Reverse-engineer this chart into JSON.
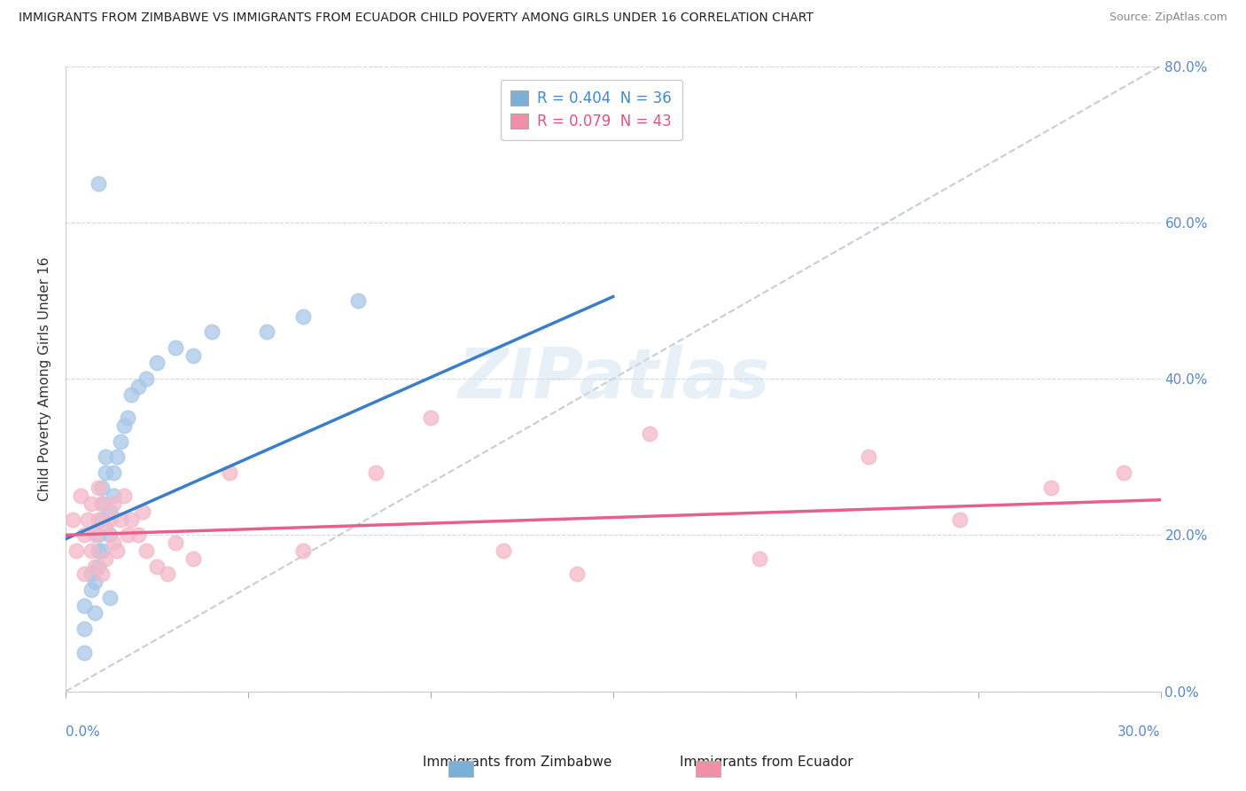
{
  "title": "IMMIGRANTS FROM ZIMBABWE VS IMMIGRANTS FROM ECUADOR CHILD POVERTY AMONG GIRLS UNDER 16 CORRELATION CHART",
  "source": "Source: ZipAtlas.com",
  "ylabel": "Child Poverty Among Girls Under 16",
  "legend1_label": "R = 0.404  N = 36",
  "legend2_label": "R = 0.079  N = 43",
  "legend_xlabel1": "Immigrants from Zimbabwe",
  "legend_xlabel2": "Immigrants from Ecuador",
  "watermark": "ZIPatlas",
  "blue_color": "#a8c8e8",
  "pink_color": "#f4b8c8",
  "blue_line": "#3a7ec8",
  "pink_line": "#e8608a",
  "blue_legend": "#7ab0d8",
  "pink_legend": "#f090a8",
  "xlim": [
    0.0,
    0.3
  ],
  "ylim": [
    0.0,
    0.8
  ],
  "zimbabwe_x": [
    0.005,
    0.005,
    0.005,
    0.007,
    0.007,
    0.008,
    0.008,
    0.009,
    0.009,
    0.009,
    0.009,
    0.01,
    0.01,
    0.01,
    0.011,
    0.011,
    0.012,
    0.012,
    0.013,
    0.013,
    0.014,
    0.015,
    0.016,
    0.017,
    0.018,
    0.02,
    0.022,
    0.025,
    0.03,
    0.035,
    0.04,
    0.055,
    0.065,
    0.08,
    0.01,
    0.012
  ],
  "zimbabwe_y": [
    0.05,
    0.08,
    0.11,
    0.13,
    0.15,
    0.1,
    0.14,
    0.16,
    0.18,
    0.2,
    0.65,
    0.22,
    0.24,
    0.26,
    0.28,
    0.3,
    0.2,
    0.23,
    0.25,
    0.28,
    0.3,
    0.32,
    0.34,
    0.35,
    0.38,
    0.39,
    0.4,
    0.42,
    0.44,
    0.43,
    0.46,
    0.46,
    0.48,
    0.5,
    0.18,
    0.12
  ],
  "ecuador_x": [
    0.002,
    0.003,
    0.004,
    0.005,
    0.005,
    0.006,
    0.007,
    0.007,
    0.008,
    0.008,
    0.009,
    0.009,
    0.01,
    0.01,
    0.011,
    0.011,
    0.012,
    0.013,
    0.013,
    0.014,
    0.015,
    0.016,
    0.017,
    0.018,
    0.02,
    0.021,
    0.022,
    0.025,
    0.028,
    0.03,
    0.035,
    0.045,
    0.065,
    0.085,
    0.1,
    0.12,
    0.14,
    0.16,
    0.19,
    0.22,
    0.245,
    0.27,
    0.29
  ],
  "ecuador_y": [
    0.22,
    0.18,
    0.25,
    0.15,
    0.2,
    0.22,
    0.18,
    0.24,
    0.2,
    0.16,
    0.22,
    0.26,
    0.15,
    0.24,
    0.17,
    0.21,
    0.22,
    0.24,
    0.19,
    0.18,
    0.22,
    0.25,
    0.2,
    0.22,
    0.2,
    0.23,
    0.18,
    0.16,
    0.15,
    0.19,
    0.17,
    0.28,
    0.18,
    0.28,
    0.35,
    0.18,
    0.15,
    0.33,
    0.17,
    0.3,
    0.22,
    0.26,
    0.28
  ],
  "right_y_ticks": [
    0.0,
    0.2,
    0.4,
    0.6,
    0.8
  ],
  "right_y_labels": [
    "0.0%",
    "20.0%",
    "40.0%",
    "60.0%",
    "80.0%"
  ]
}
